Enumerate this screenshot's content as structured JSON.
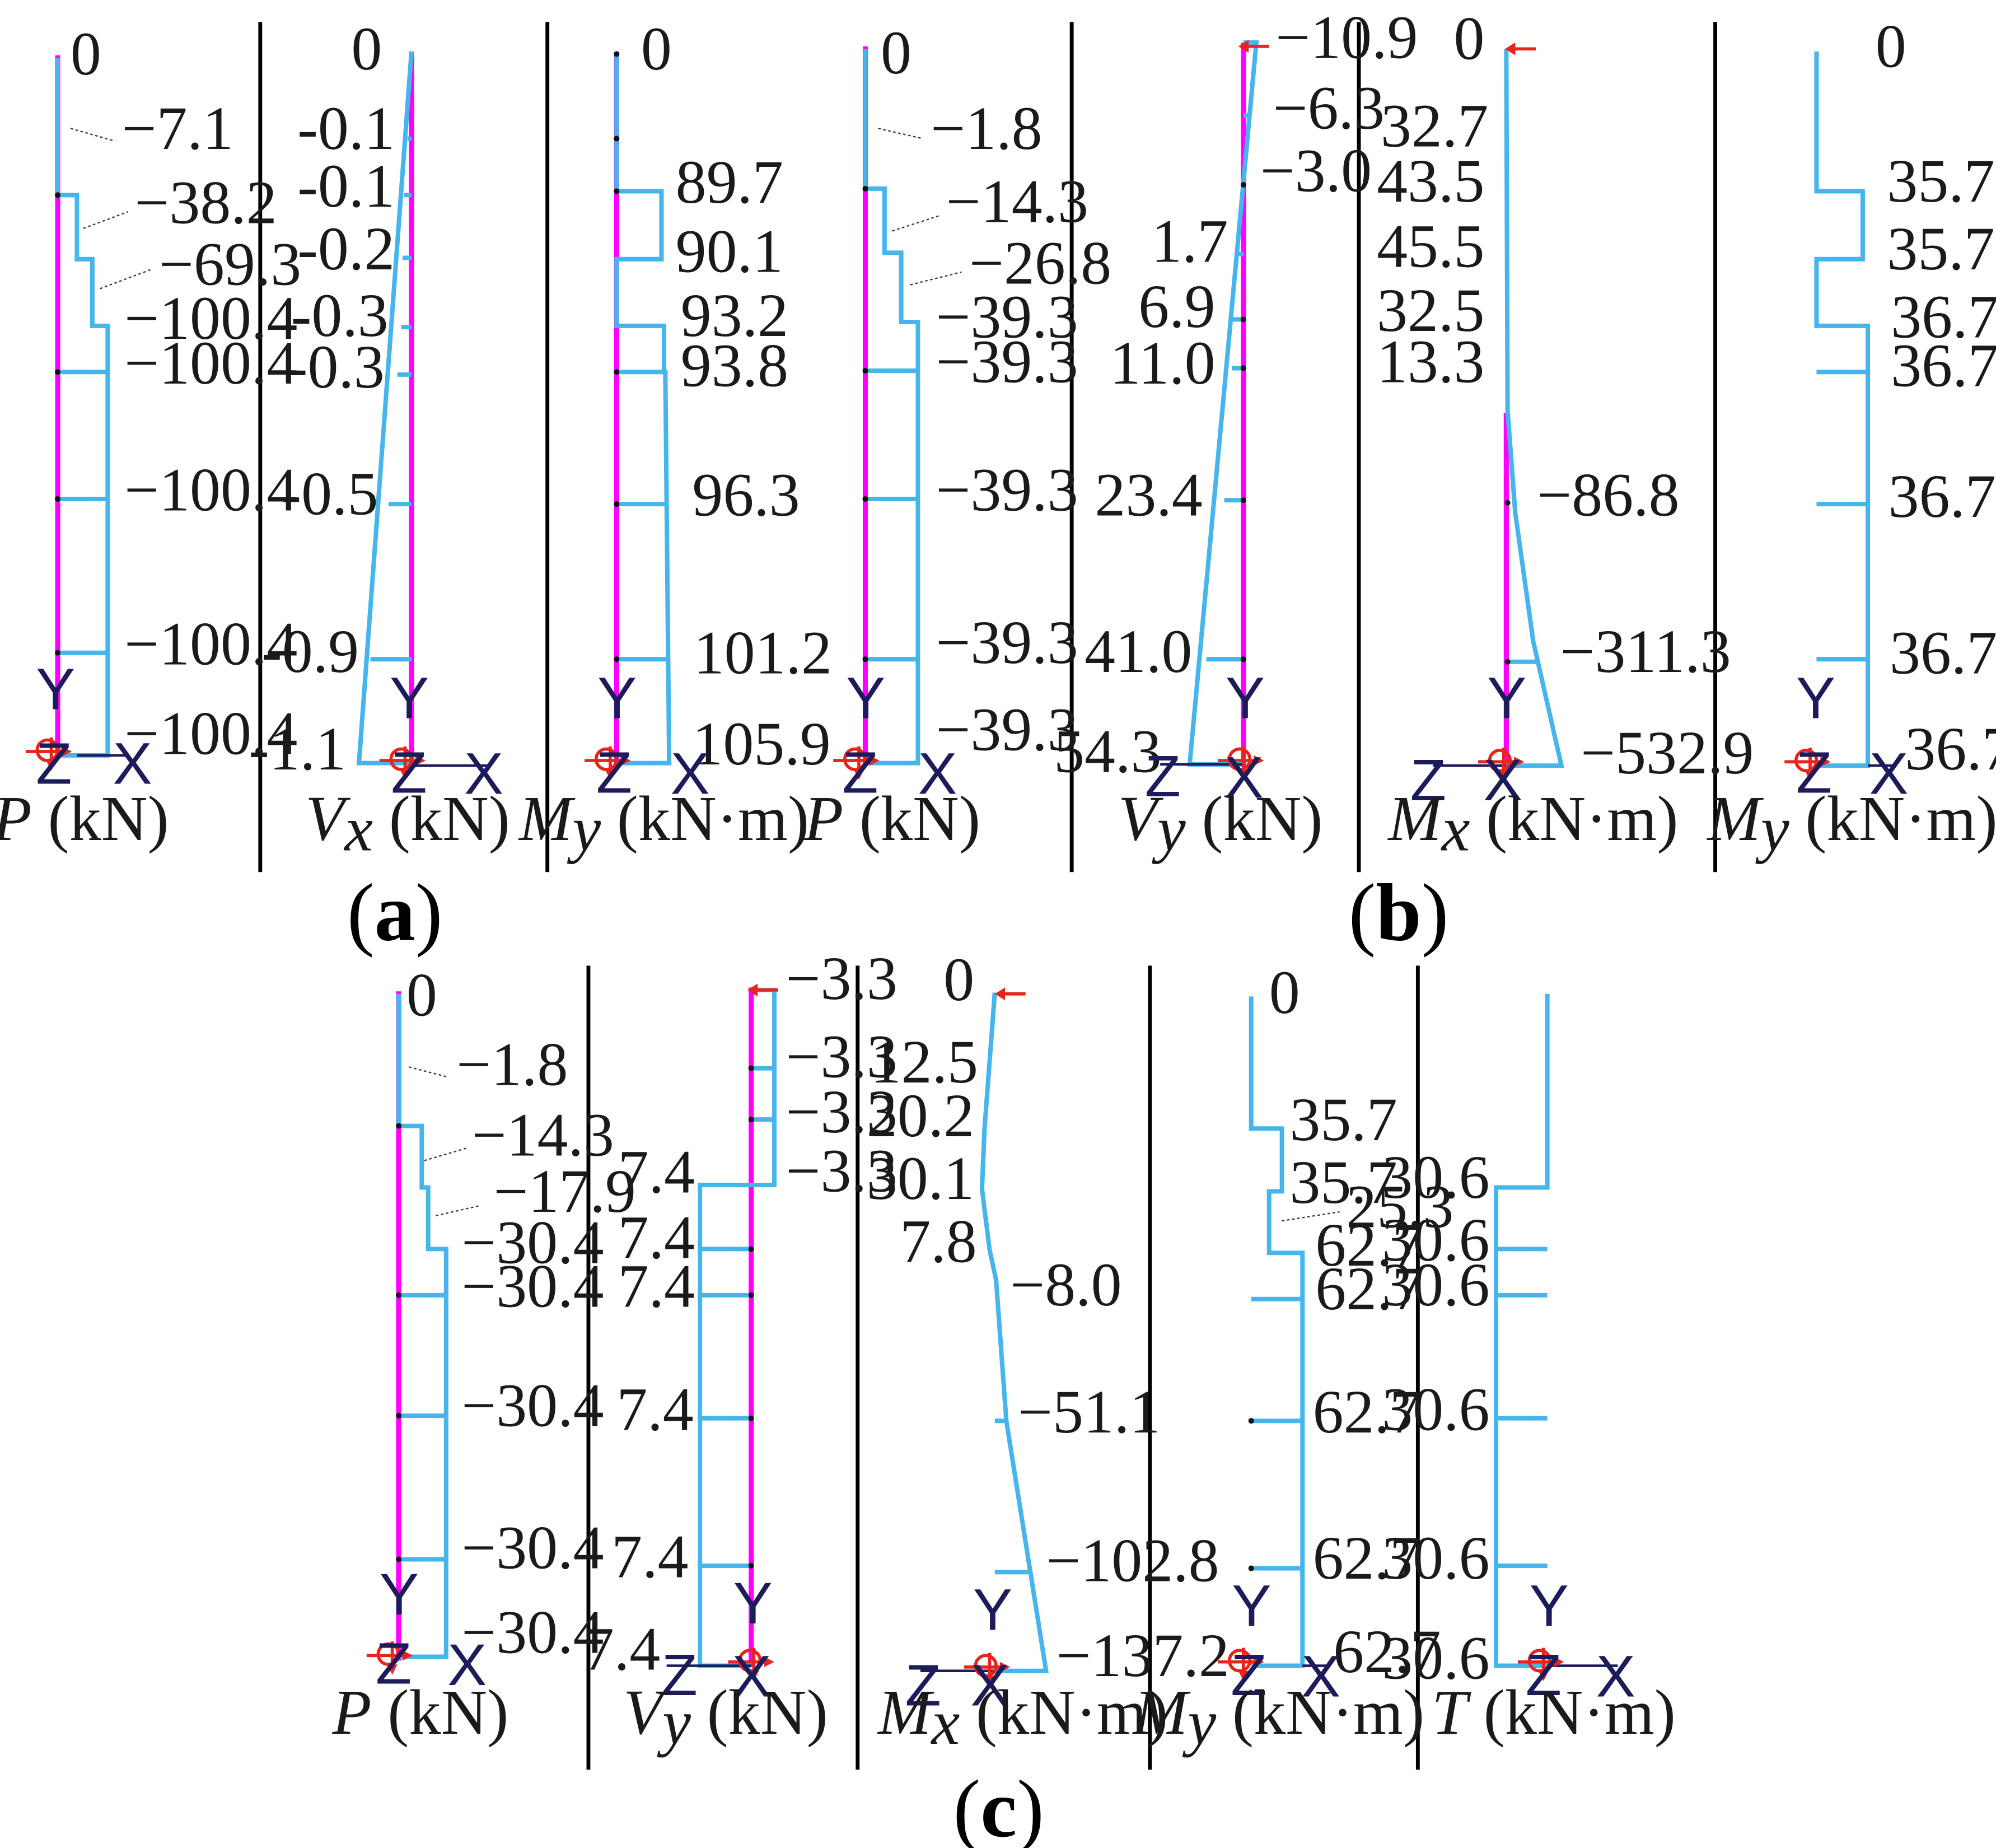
{
  "colors": {
    "member": "#ff00ff",
    "diagram": "#45b5ec",
    "axis": "#1c1c5c",
    "support": "#e8241c",
    "node": "#111111",
    "separator": "#000000"
  },
  "panels": [
    {
      "id": "a",
      "label": "a"
    },
    {
      "id": "b",
      "label": "b"
    },
    {
      "id": "c",
      "label": "c"
    }
  ],
  "chart_data": [
    {
      "type": "diagram",
      "panel": "a",
      "quantity": "P",
      "unit": "(kN)",
      "values": [
        "0",
        "−7.1",
        "−38.2",
        "−69.3",
        "−100.4",
        "−100.4",
        "−100.4",
        "−100.4",
        "−100.4"
      ],
      "axes": {
        "y": "Y",
        "z": "Z",
        "x": "X"
      }
    },
    {
      "type": "diagram",
      "panel": "a",
      "quantity": "V",
      "subscript": "x",
      "unit": "(kN)",
      "values": [
        "0",
        "-0.1",
        "-0.1",
        "-0.2",
        "-0.3",
        "-0.3",
        "-0.5",
        "-0.9",
        "-1.1"
      ],
      "axes": {
        "y": "Y",
        "z": "Z",
        "x": "X"
      }
    },
    {
      "type": "diagram",
      "panel": "a",
      "quantity": "M",
      "subscript": "y",
      "unit": "(kN·m)",
      "values": [
        "0",
        "89.7",
        "90.1",
        "93.2",
        "93.8",
        "96.3",
        "101.2",
        "105.9"
      ],
      "axes": {
        "y": "Y",
        "z": "Z",
        "x": "X"
      }
    },
    {
      "type": "diagram",
      "panel": "b",
      "quantity": "P",
      "unit": "(kN)",
      "values": [
        "0",
        "−1.8",
        "−14.3",
        "−26.8",
        "−39.3",
        "−39.3",
        "−39.3",
        "−39.3",
        "−39.3"
      ],
      "axes": {
        "y": "Y",
        "z": "Z",
        "x": "X"
      }
    },
    {
      "type": "diagram",
      "panel": "b",
      "quantity": "V",
      "subscript": "y",
      "unit": "(kN)",
      "values": [
        "−10.9",
        "−6.3",
        "−3.0",
        "1.7",
        "6.9",
        "11.0",
        "23.4",
        "41.0",
        "54.3"
      ],
      "axes": {
        "y": "Y",
        "z": "Z",
        "x": "X"
      }
    },
    {
      "type": "diagram",
      "panel": "b",
      "quantity": "M",
      "subscript": "x",
      "unit": "(kN·m)",
      "values": [
        "0",
        "32.7",
        "43.5",
        "45.5",
        "32.5",
        "13.3",
        "−86.8",
        "−311.3",
        "−532.9"
      ],
      "axes": {
        "y": "Y",
        "z": "Z",
        "x": "X"
      }
    },
    {
      "type": "diagram",
      "panel": "b",
      "quantity": "M",
      "subscript": "y",
      "unit": "(kN·m)",
      "values": [
        "0",
        "35.7",
        "35.7",
        "36.7",
        "36.7",
        "36.7",
        "36.7",
        "36.7"
      ],
      "axes": {
        "y": "Y",
        "z": "Z",
        "x": "X"
      }
    },
    {
      "type": "diagram",
      "panel": "c",
      "quantity": "P",
      "unit": "(kN)",
      "values": [
        "0",
        "−1.8",
        "−14.3",
        "−17.9",
        "−30.4",
        "−30.4",
        "−30.4",
        "−30.4",
        "−30.4"
      ],
      "axes": {
        "y": "Y",
        "z": "Z",
        "x": "X"
      }
    },
    {
      "type": "diagram",
      "panel": "c",
      "quantity": "V",
      "subscript": "y",
      "unit": "(kN)",
      "values": [
        "−3.3",
        "−3.3",
        "−3.3",
        "−3.3",
        "7.4",
        "7.4",
        "7.4",
        "7.4",
        "7.4",
        "7.4"
      ],
      "axes": {
        "y": "Y",
        "z": "Z",
        "x": "X"
      }
    },
    {
      "type": "diagram",
      "panel": "c",
      "quantity": "M",
      "subscript": "x",
      "unit": "(kN·m)",
      "values": [
        "0",
        "12.5",
        "20.2",
        "30.1",
        "7.8",
        "−8.0",
        "−51.1",
        "−102.8",
        "−137.2"
      ],
      "axes": {
        "y": "Y",
        "z": "Z",
        "x": "X"
      }
    },
    {
      "type": "diagram",
      "panel": "c",
      "quantity": "M",
      "subscript": "y",
      "unit": "(kN·m)",
      "values": [
        "0",
        "35.7",
        "35.7",
        "25.3",
        "62.7",
        "62.7",
        "62.7",
        "62.7",
        "62.7"
      ],
      "axes": {
        "y": "Y",
        "z": "Z",
        "x": "X"
      }
    },
    {
      "type": "diagram",
      "panel": "c",
      "quantity": "T",
      "unit": "(kN·m)",
      "values": [
        "30.6",
        "30.6",
        "30.6",
        "30.6",
        "30.6",
        "30.6"
      ],
      "axes": {
        "y": "Y",
        "z": "Z",
        "x": "X"
      }
    }
  ]
}
